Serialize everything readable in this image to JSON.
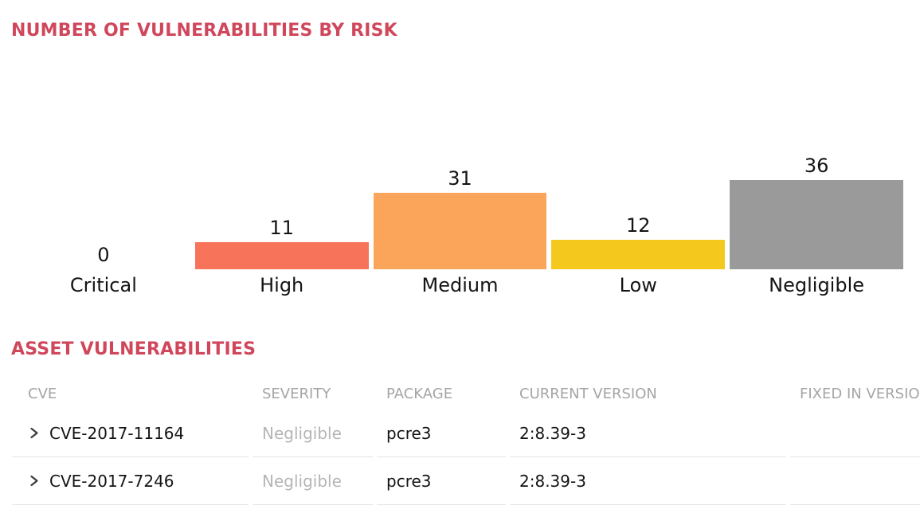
{
  "colors": {
    "accent": "#d0475c",
    "table_header_text": "#a5a5a5",
    "severity_text": "#b5b5b5",
    "body_text": "#141414",
    "row_divider": "#e4e4e4"
  },
  "chart_section": {
    "title": "NUMBER OF VULNERABILITIES BY RISK"
  },
  "chart_data": {
    "type": "bar",
    "title": "NUMBER OF VULNERABILITIES BY RISK",
    "categories": [
      "Critical",
      "High",
      "Medium",
      "Low",
      "Negligible"
    ],
    "values": [
      0,
      11,
      31,
      12,
      36
    ],
    "bar_colors": [
      null,
      "#f7735a",
      "#fba55a",
      "#f5c81e",
      "#9a9a9a"
    ],
    "value_labels_shown": true,
    "axes_shown": false,
    "gridlines": false,
    "ylim": [
      0,
      36
    ]
  },
  "asset_table": {
    "title": "ASSET VULNERABILITIES",
    "columns": [
      "CVE",
      "SEVERITY",
      "PACKAGE",
      "CURRENT VERSION",
      "FIXED IN VERSION"
    ],
    "rows": [
      {
        "cve": "CVE-2017-11164",
        "severity": "Negligible",
        "package": "pcre3",
        "current_version": "2:8.39-3",
        "fixed_in_version": ""
      },
      {
        "cve": "CVE-2017-7246",
        "severity": "Negligible",
        "package": "pcre3",
        "current_version": "2:8.39-3",
        "fixed_in_version": ""
      }
    ]
  }
}
